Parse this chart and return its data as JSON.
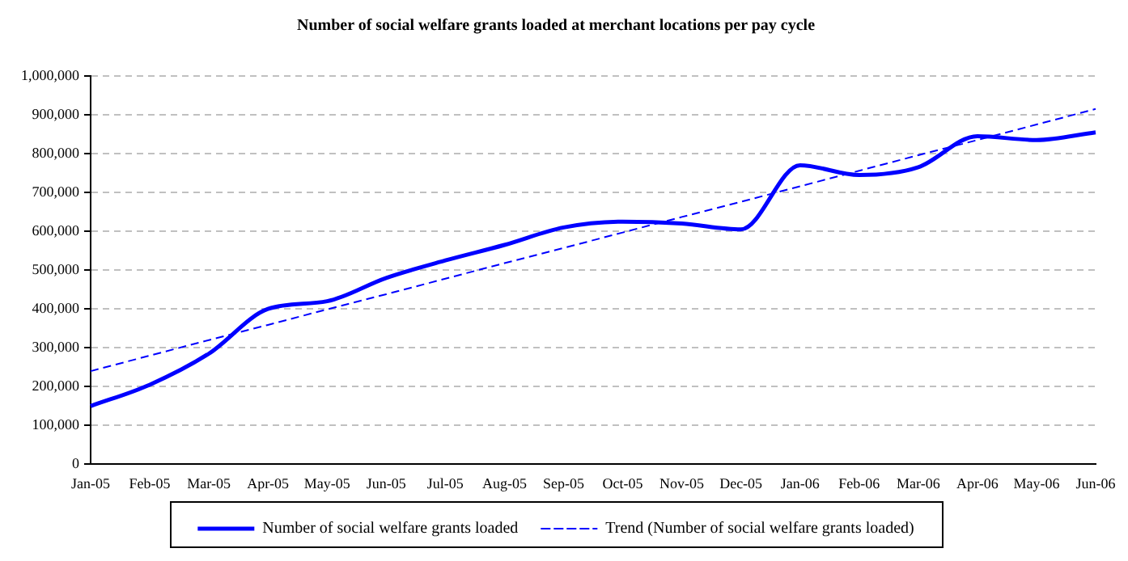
{
  "chart_data": {
    "type": "line",
    "title": "Number of social welfare grants loaded at merchant locations per pay cycle",
    "categories": [
      "Jan-05",
      "Feb-05",
      "Mar-05",
      "Apr-05",
      "May-05",
      "Jun-05",
      "Jul-05",
      "Aug-05",
      "Sep-05",
      "Oct-05",
      "Nov-05",
      "Dec-05",
      "Jan-06",
      "Feb-06",
      "Mar-06",
      "Apr-06",
      "May-06",
      "Jun-06"
    ],
    "series": [
      {
        "name": "Number of social welfare grants loaded",
        "color": "#0000ff",
        "line_style": "solid",
        "values": [
          150000,
          205000,
          285000,
          400000,
          420000,
          480000,
          525000,
          565000,
          610000,
          625000,
          620000,
          605000,
          770000,
          745000,
          765000,
          845000,
          835000,
          855000
        ]
      },
      {
        "name": "Trend (Number of social welfare grants loaded)",
        "color": "#0000ff",
        "line_style": "dashed",
        "values": [
          240000,
          280000,
          320000,
          359000,
          399000,
          438000,
          478000,
          518000,
          557000,
          597000,
          637000,
          676000,
          716000,
          756000,
          796000,
          835000,
          875000,
          915000
        ]
      }
    ],
    "ylim": [
      0,
      1000000
    ],
    "yticks": [
      0,
      {
        "value": 100000,
        "label": "100,000"
      },
      {
        "value": 200000,
        "label": "200,000"
      },
      {
        "value": 300000,
        "label": "300,000"
      },
      {
        "value": 400000,
        "label": "400,000"
      },
      {
        "value": 500000,
        "label": "500,000"
      },
      {
        "value": 600000,
        "label": "600,000"
      },
      {
        "value": 700000,
        "label": "700,000"
      },
      {
        "value": 800000,
        "label": "800,000"
      },
      {
        "value": 900000,
        "label": "900,000"
      },
      {
        "value": 1000000,
        "label": "1,000,000"
      }
    ],
    "grid": "y",
    "legend": "bottom",
    "marker": "none"
  }
}
